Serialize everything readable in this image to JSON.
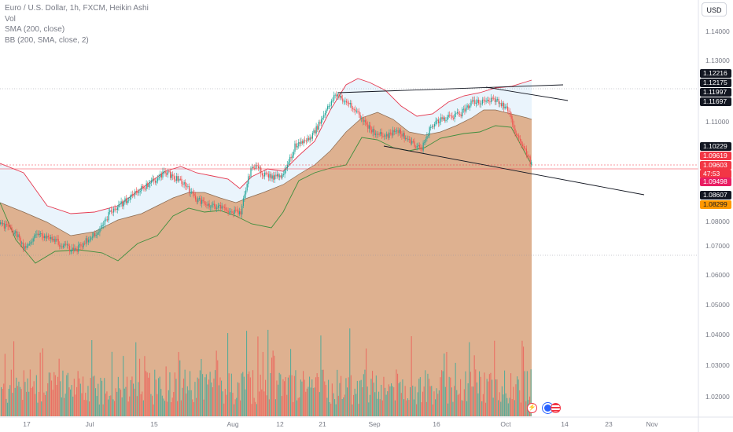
{
  "legend": {
    "title": "Euro / U.S. Dollar, 1h, FXCM, Heikin Ashi",
    "vol": "Vol",
    "sma": "SMA (200, close)",
    "bb": "BB (200, SMA, close, 2)"
  },
  "currency_button": "USD",
  "price_ticks": [
    "1.14000",
    "1.13000",
    "1.11000",
    "1.08000",
    "1.07000",
    "1.06000",
    "1.05000",
    "1.04000",
    "1.03000",
    "1.02000"
  ],
  "price_tags": [
    {
      "value": "1.12216",
      "bg": "#131722",
      "fg": "#ffffff"
    },
    {
      "value": "1.12175",
      "bg": "#131722",
      "fg": "#ffffff"
    },
    {
      "value": "1.11997",
      "bg": "#131722",
      "fg": "#ffffff"
    },
    {
      "value": "1.11697",
      "bg": "#131722",
      "fg": "#ffffff"
    },
    {
      "value": "1.10229",
      "bg": "#131722",
      "fg": "#ffffff"
    },
    {
      "value": "1.09619",
      "bg": "#f23645",
      "fg": "#ffffff"
    },
    {
      "value": "1.09603",
      "bg": "#f23645",
      "fg": "#ffffff"
    },
    {
      "value": "47:53",
      "bg": "#f23645",
      "fg": "#ffffff"
    },
    {
      "value": "1.09498",
      "bg": "#e91e63",
      "fg": "#ffffff"
    },
    {
      "value": "1.08607",
      "bg": "#131722",
      "fg": "#ffffff"
    },
    {
      "value": "1.08299",
      "bg": "#ff9800",
      "fg": "#131722"
    }
  ],
  "time_ticks": [
    "17",
    "Jul",
    "15",
    "Aug",
    "12",
    "21",
    "Sep",
    "16",
    "Oct",
    "14",
    "23",
    "Nov"
  ],
  "colors": {
    "up": "#26a69a",
    "down": "#ef5350",
    "bb_upper": "#e53950",
    "bb_lower": "#3e8e3e",
    "bb_fill": "#e8f3fc",
    "sma_fill": "#d8a37d",
    "trendline": "#131722"
  },
  "events": [
    {
      "icon": "lightning-icon"
    },
    {
      "icon": "flag-icon"
    }
  ]
}
